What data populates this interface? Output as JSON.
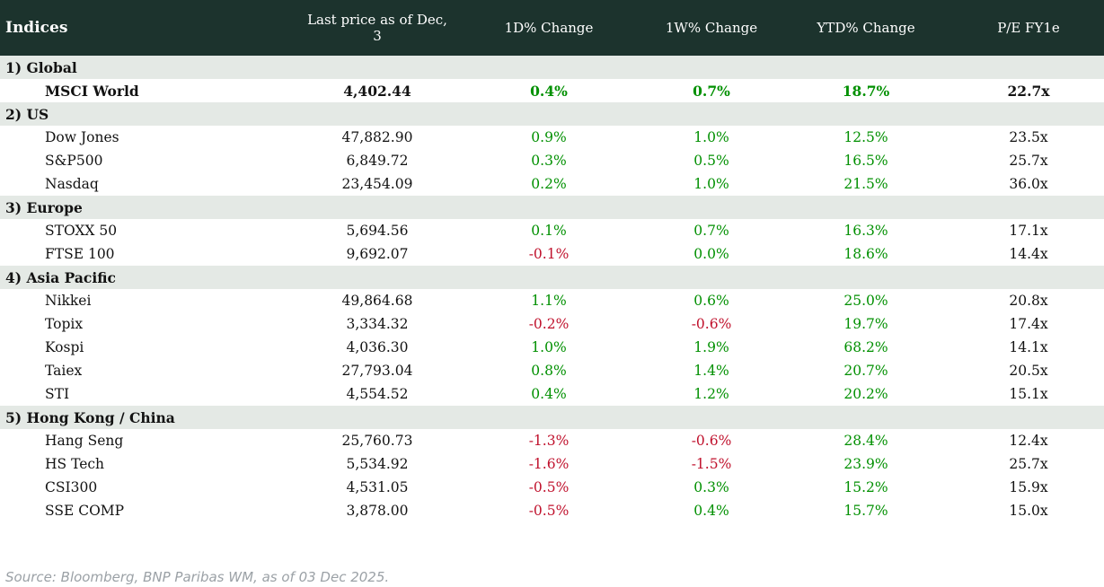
{
  "header": {
    "title": "Indices",
    "columns": {
      "last_price": "Last price as of Dec, 3",
      "change_1d": "1D% Change",
      "change_1w": "1W% Change",
      "change_ytd": "YTD% Change",
      "pe": "P/E FY1e"
    }
  },
  "sections": [
    {
      "label": "1) Global",
      "rows": [
        {
          "name": "MSCI World",
          "price": "4,402.44",
          "d1": "0.4%",
          "w1": "0.7%",
          "ytd": "18.7%",
          "pe": "22.7x"
        }
      ]
    },
    {
      "label": "2) US",
      "rows": [
        {
          "name": "Dow Jones",
          "price": "47,882.90",
          "d1": "0.9%",
          "w1": "1.0%",
          "ytd": "12.5%",
          "pe": "23.5x"
        },
        {
          "name": "S&P500",
          "price": "6,849.72",
          "d1": "0.3%",
          "w1": "0.5%",
          "ytd": "16.5%",
          "pe": "25.7x"
        },
        {
          "name": "Nasdaq",
          "price": "23,454.09",
          "d1": "0.2%",
          "w1": "1.0%",
          "ytd": "21.5%",
          "pe": "36.0x"
        }
      ]
    },
    {
      "label": "3) Europe",
      "rows": [
        {
          "name": "STOXX 50",
          "price": "5,694.56",
          "d1": "0.1%",
          "w1": "0.7%",
          "ytd": "16.3%",
          "pe": "17.1x"
        },
        {
          "name": "FTSE 100",
          "price": "9,692.07",
          "d1": "-0.1%",
          "w1": "0.0%",
          "ytd": "18.6%",
          "pe": "14.4x"
        }
      ]
    },
    {
      "label": "4) Asia Pacific",
      "rows": [
        {
          "name": "Nikkei",
          "price": "49,864.68",
          "d1": "1.1%",
          "w1": "0.6%",
          "ytd": "25.0%",
          "pe": "20.8x"
        },
        {
          "name": "Topix",
          "price": "3,334.32",
          "d1": "-0.2%",
          "w1": "-0.6%",
          "ytd": "19.7%",
          "pe": "17.4x"
        },
        {
          "name": "Kospi",
          "price": "4,036.30",
          "d1": "1.0%",
          "w1": "1.9%",
          "ytd": "68.2%",
          "pe": "14.1x"
        },
        {
          "name": "Taiex",
          "price": "27,793.04",
          "d1": "0.8%",
          "w1": "1.4%",
          "ytd": "20.7%",
          "pe": "20.5x"
        },
        {
          "name": "STI",
          "price": "4,554.52",
          "d1": "0.4%",
          "w1": "1.2%",
          "ytd": "20.2%",
          "pe": "15.1x"
        }
      ]
    },
    {
      "label": "5) Hong Kong / China",
      "rows": [
        {
          "name": "Hang Seng",
          "price": "25,760.73",
          "d1": "-1.3%",
          "w1": "-0.6%",
          "ytd": "28.4%",
          "pe": "12.4x"
        },
        {
          "name": "HS Tech",
          "price": "5,534.92",
          "d1": "-1.6%",
          "w1": "-1.5%",
          "ytd": "23.9%",
          "pe": "25.7x"
        },
        {
          "name": "CSI300",
          "price": "4,531.05",
          "d1": "-0.5%",
          "w1": "0.3%",
          "ytd": "15.2%",
          "pe": "15.9x"
        },
        {
          "name": "SSE COMP",
          "price": "3,878.00",
          "d1": "-0.5%",
          "w1": "0.4%",
          "ytd": "15.7%",
          "pe": "15.0x"
        }
      ]
    }
  ],
  "footer": {
    "source": "Source: Bloomberg, BNP Paribas WM, as of 03 Dec 2025."
  },
  "colors": {
    "header_bg": "#1c332d",
    "section_bg": "#e4e9e5",
    "positive": "#019001",
    "negative": "#c0122d",
    "text": "#121212",
    "footer_text": "#9ba1a6"
  }
}
